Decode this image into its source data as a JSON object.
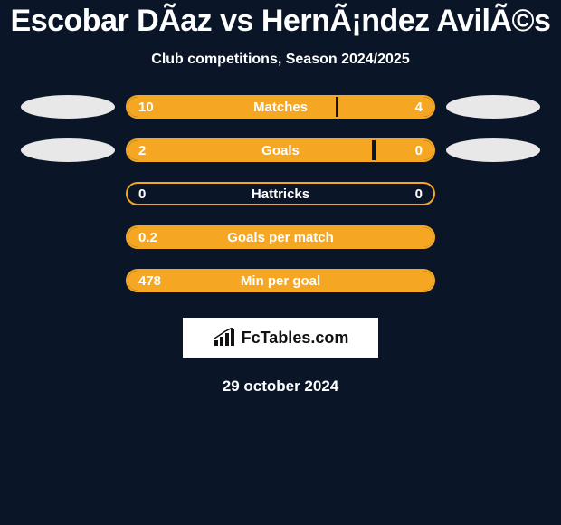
{
  "title": "Escobar DÃ­az vs HernÃ¡ndez AvilÃ©s",
  "subtitle": "Club competitions, Season 2024/2025",
  "brand": {
    "text": "FcTables.com"
  },
  "date": "29 october 2024",
  "colors": {
    "background": "#0a1628",
    "bar_border": "#f5a623",
    "bar_fill": "#f5a623",
    "ellipse": "#e8e8e8",
    "brand_bg": "#ffffff",
    "brand_text": "#111111",
    "text": "#ffffff"
  },
  "chart": {
    "type": "comparison-bars",
    "track_width": 342,
    "rows": [
      {
        "label": "Matches",
        "left_value": "10",
        "right_value": "4",
        "left_fill_pct": 68,
        "right_fill_pct": 31,
        "show_left_ellipse": true,
        "show_right_ellipse": true
      },
      {
        "label": "Goals",
        "left_value": "2",
        "right_value": "0",
        "left_fill_pct": 80,
        "right_fill_pct": 19,
        "show_left_ellipse": true,
        "show_right_ellipse": true
      },
      {
        "label": "Hattricks",
        "left_value": "0",
        "right_value": "0",
        "left_fill_pct": 0,
        "right_fill_pct": 0,
        "show_left_ellipse": false,
        "show_right_ellipse": false
      },
      {
        "label": "Goals per match",
        "left_value": "0.2",
        "right_value": "",
        "left_fill_pct": 100,
        "right_fill_pct": 0,
        "show_left_ellipse": false,
        "show_right_ellipse": false
      },
      {
        "label": "Min per goal",
        "left_value": "478",
        "right_value": "",
        "left_fill_pct": 100,
        "right_fill_pct": 0,
        "show_left_ellipse": false,
        "show_right_ellipse": false
      }
    ]
  }
}
